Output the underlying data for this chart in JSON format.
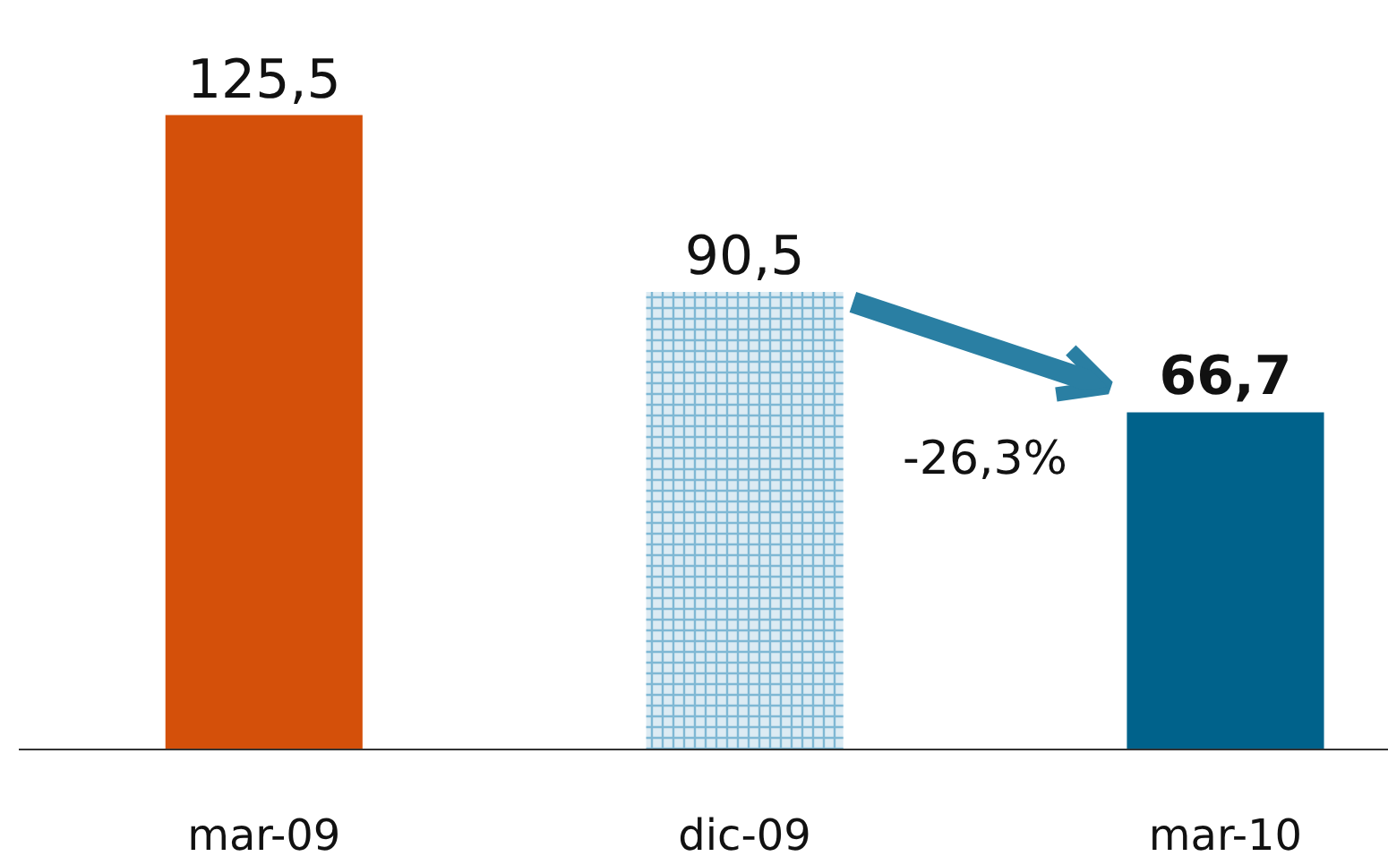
{
  "chart_data": {
    "type": "bar",
    "categories": [
      "mar-09",
      "dic-09",
      "mar-10"
    ],
    "values": [
      125.5,
      90.5,
      66.7
    ],
    "value_labels": [
      "125,5",
      "90,5",
      "66,7"
    ],
    "colors": [
      "#d4500a",
      "#7fb8d4",
      "#00628b"
    ],
    "annotations": [
      "-26,3%"
    ]
  }
}
